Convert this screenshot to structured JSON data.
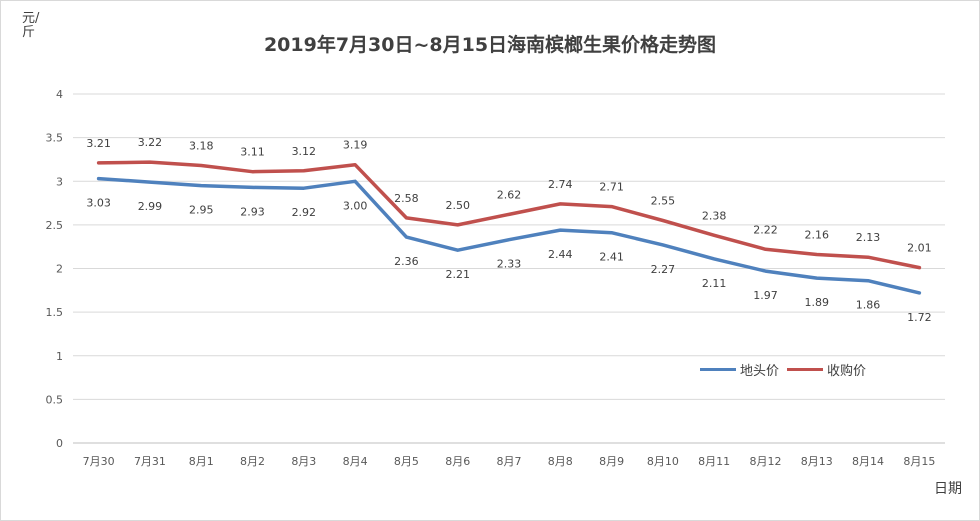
{
  "chart_data": {
    "type": "line",
    "title": "2019年7月30日~8月15日海南槟榔生果价格走势图",
    "ylabel": "元/斤",
    "xlabel": "日期",
    "ylim": [
      0,
      4
    ],
    "yticks": [
      "0",
      "0.5",
      "1",
      "1.5",
      "2",
      "2.5",
      "3",
      "3.5",
      "4"
    ],
    "grid": true,
    "legend_position": "right",
    "categories": [
      "7月30",
      "7月31",
      "8月1",
      "8月2",
      "8月3",
      "8月4",
      "8月5",
      "8月6",
      "8月7",
      "8月8",
      "8月9",
      "8月10",
      "8月11",
      "8月12",
      "8月13",
      "8月14",
      "8月15"
    ],
    "series": [
      {
        "name": "地头价",
        "color": "#4f81bd",
        "values": [
          3.03,
          2.99,
          2.95,
          2.93,
          2.92,
          3.0,
          2.36,
          2.21,
          2.33,
          2.44,
          2.41,
          2.27,
          2.11,
          1.97,
          1.89,
          1.86,
          1.72
        ],
        "labels": [
          "3.03",
          "2.99",
          "2.95",
          "2.93",
          "2.92",
          "3.00",
          "2.36",
          "2.21",
          "2.33",
          "2.44",
          "2.41",
          "2.27",
          "2.11",
          "1.97",
          "1.89",
          "1.86",
          "1.72"
        ]
      },
      {
        "name": "收购价",
        "color": "#c0504d",
        "values": [
          3.21,
          3.22,
          3.18,
          3.11,
          3.12,
          3.19,
          2.58,
          2.5,
          2.62,
          2.74,
          2.71,
          2.55,
          2.38,
          2.22,
          2.16,
          2.13,
          2.01
        ],
        "labels": [
          "3.21",
          "3.22",
          "3.18",
          "3.11",
          "3.12",
          "3.19",
          "2.58",
          "2.50",
          "2.62",
          "2.74",
          "2.71",
          "2.55",
          "2.38",
          "2.22",
          "2.16",
          "2.13",
          "2.01"
        ]
      }
    ]
  }
}
